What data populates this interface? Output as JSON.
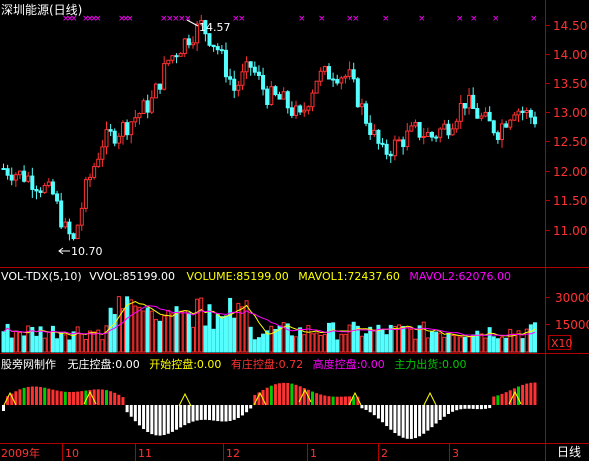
{
  "header": {
    "title": "深圳能源(日线)"
  },
  "price_panel": {
    "high_marker": "14.57",
    "low_marker": "10.70",
    "axis_ticks": [
      "14.50",
      "14.00",
      "13.50",
      "13.00",
      "12.50",
      "12.00",
      "11.50",
      "11.00"
    ]
  },
  "volume_panel": {
    "indicator": "VOL-TDX(5,10)",
    "vvol": "VVOL:85199.00",
    "volume": "VOLUME:85199.00",
    "mavol1": "MAVOL1:72437.60",
    "mavol2": "MAVOL2:62076.00",
    "axis_ticks": [
      "30000",
      "15000"
    ],
    "unit_label": "X10"
  },
  "zhuang_panel": {
    "source": "股旁网制作",
    "none": "无庄控盘:0.00",
    "start": "开始控盘:0.00",
    "have": "有庄控盘:0.72",
    "high": "高度控盘:0.00",
    "out": "主力出货:0.00"
  },
  "date_axis": {
    "labels": [
      "2009年",
      "10",
      "11",
      "12",
      "1",
      "2",
      "3"
    ],
    "period": "日线"
  },
  "colors": {
    "up": "#ff3232",
    "down": "#54ffff",
    "axis": "#b00000",
    "text_white": "#ffffff",
    "yellow": "#ffff00",
    "magenta": "#ff00ff",
    "green": "#00cc00"
  }
}
